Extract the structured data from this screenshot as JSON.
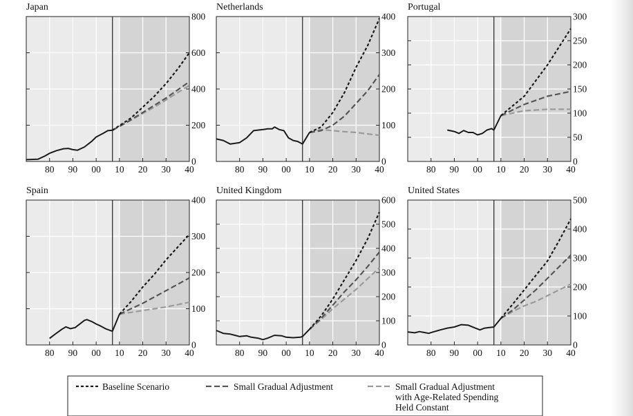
{
  "legend": {
    "items": [
      {
        "key": "baseline",
        "lines": [
          "Baseline Scenario"
        ],
        "color": "#1a1a1a",
        "dash": "4 3"
      },
      {
        "key": "gradual",
        "lines": [
          "Small Gradual Adjustment"
        ],
        "color": "#555555",
        "dash": "8 4"
      },
      {
        "key": "constant",
        "lines": [
          "Small Gradual Adjustment",
          "with Age-Related Spending",
          "Held Constant"
        ],
        "color": "#9a9a9a",
        "dash": "8 4"
      }
    ]
  },
  "chart_data": [
    {
      "type": "line",
      "title": "Japan",
      "x_ticks": [
        "80",
        "90",
        "00",
        "10",
        "20",
        "30",
        "40"
      ],
      "x_tick_values": [
        1980,
        1990,
        2000,
        2010,
        2020,
        2030,
        2040
      ],
      "xlim": [
        1970,
        2040
      ],
      "ylim": [
        0,
        800
      ],
      "y_ticks": [
        0,
        200,
        400,
        600,
        800
      ],
      "projection_start": 2007,
      "forecast_shade_start": 2010,
      "series": [
        {
          "key": "historical",
          "points": [
            [
              1970,
              10
            ],
            [
              1975,
              12
            ],
            [
              1978,
              30
            ],
            [
              1980,
              45
            ],
            [
              1983,
              60
            ],
            [
              1986,
              70
            ],
            [
              1988,
              72
            ],
            [
              1990,
              65
            ],
            [
              1992,
              62
            ],
            [
              1995,
              80
            ],
            [
              1998,
              110
            ],
            [
              2000,
              135
            ],
            [
              2003,
              155
            ],
            [
              2005,
              170
            ],
            [
              2007,
              172
            ]
          ]
        },
        {
          "key": "baseline",
          "points": [
            [
              2007,
              172
            ],
            [
              2015,
              240
            ],
            [
              2020,
              300
            ],
            [
              2025,
              360
            ],
            [
              2030,
              430
            ],
            [
              2035,
              510
            ],
            [
              2040,
              600
            ]
          ]
        },
        {
          "key": "gradual",
          "points": [
            [
              2007,
              172
            ],
            [
              2015,
              230
            ],
            [
              2020,
              270
            ],
            [
              2025,
              310
            ],
            [
              2030,
              350
            ],
            [
              2035,
              395
            ],
            [
              2040,
              440
            ]
          ]
        },
        {
          "key": "constant",
          "points": [
            [
              2007,
              172
            ],
            [
              2015,
              228
            ],
            [
              2020,
              265
            ],
            [
              2025,
              300
            ],
            [
              2030,
              340
            ],
            [
              2035,
              380
            ],
            [
              2040,
              420
            ]
          ]
        }
      ]
    },
    {
      "type": "line",
      "title": "Netherlands",
      "x_ticks": [
        "80",
        "90",
        "00",
        "10",
        "20",
        "30",
        "40"
      ],
      "x_tick_values": [
        1980,
        1990,
        2000,
        2010,
        2020,
        2030,
        2040
      ],
      "xlim": [
        1970,
        2040
      ],
      "ylim": [
        0,
        400
      ],
      "y_ticks": [
        0,
        100,
        200,
        300,
        400
      ],
      "projection_start": 2007,
      "forecast_shade_start": 2010,
      "series": [
        {
          "key": "historical",
          "points": [
            [
              1970,
              62
            ],
            [
              1973,
              58
            ],
            [
              1976,
              48
            ],
            [
              1980,
              52
            ],
            [
              1983,
              65
            ],
            [
              1986,
              85
            ],
            [
              1990,
              88
            ],
            [
              1992,
              90
            ],
            [
              1994,
              90
            ],
            [
              1995,
              95
            ],
            [
              1997,
              88
            ],
            [
              1999,
              85
            ],
            [
              2001,
              65
            ],
            [
              2003,
              58
            ],
            [
              2005,
              55
            ],
            [
              2007,
              48
            ],
            [
              2010,
              80
            ]
          ]
        },
        {
          "key": "baseline",
          "points": [
            [
              2010,
              80
            ],
            [
              2015,
              95
            ],
            [
              2020,
              135
            ],
            [
              2025,
              190
            ],
            [
              2030,
              260
            ],
            [
              2035,
              320
            ],
            [
              2040,
              395
            ]
          ]
        },
        {
          "key": "gradual",
          "points": [
            [
              2010,
              80
            ],
            [
              2015,
              85
            ],
            [
              2020,
              100
            ],
            [
              2025,
              125
            ],
            [
              2030,
              160
            ],
            [
              2035,
              195
            ],
            [
              2040,
              240
            ]
          ]
        },
        {
          "key": "constant",
          "points": [
            [
              2010,
              80
            ],
            [
              2015,
              88
            ],
            [
              2020,
              85
            ],
            [
              2025,
              82
            ],
            [
              2030,
              80
            ],
            [
              2035,
              76
            ],
            [
              2040,
              72
            ]
          ]
        }
      ]
    },
    {
      "type": "line",
      "title": "Portugal",
      "x_ticks": [
        "80",
        "90",
        "00",
        "10",
        "20",
        "30",
        "40"
      ],
      "x_tick_values": [
        1980,
        1990,
        2000,
        2010,
        2020,
        2030,
        2040
      ],
      "xlim": [
        1970,
        2040
      ],
      "ylim": [
        0,
        300
      ],
      "y_ticks": [
        0,
        50,
        100,
        150,
        200,
        250,
        300
      ],
      "projection_start": 2007,
      "forecast_shade_start": 2010,
      "series": [
        {
          "key": "historical",
          "points": [
            [
              1987,
              65
            ],
            [
              1990,
              62
            ],
            [
              1992,
              58
            ],
            [
              1994,
              64
            ],
            [
              1996,
              60
            ],
            [
              1998,
              60
            ],
            [
              2000,
              55
            ],
            [
              2002,
              58
            ],
            [
              2004,
              65
            ],
            [
              2006,
              68
            ],
            [
              2007,
              65
            ],
            [
              2010,
              95
            ]
          ]
        },
        {
          "key": "baseline",
          "points": [
            [
              2010,
              95
            ],
            [
              2020,
              135
            ],
            [
              2030,
              200
            ],
            [
              2040,
              275
            ]
          ]
        },
        {
          "key": "gradual",
          "points": [
            [
              2010,
              95
            ],
            [
              2020,
              118
            ],
            [
              2030,
              135
            ],
            [
              2040,
              145
            ]
          ]
        },
        {
          "key": "constant",
          "points": [
            [
              2010,
              95
            ],
            [
              2020,
              105
            ],
            [
              2030,
              108
            ],
            [
              2040,
              108
            ]
          ]
        }
      ]
    },
    {
      "type": "line",
      "title": "Spain",
      "x_ticks": [
        "80",
        "90",
        "00",
        "10",
        "20",
        "30",
        "40"
      ],
      "x_tick_values": [
        1980,
        1990,
        2000,
        2010,
        2020,
        2030,
        2040
      ],
      "xlim": [
        1970,
        2040
      ],
      "ylim": [
        0,
        400
      ],
      "y_ticks": [
        0,
        100,
        200,
        300,
        400
      ],
      "projection_start": 2007,
      "forecast_shade_start": 2010,
      "series": [
        {
          "key": "historical",
          "points": [
            [
              1980,
              18
            ],
            [
              1982,
              28
            ],
            [
              1985,
              42
            ],
            [
              1987,
              50
            ],
            [
              1989,
              45
            ],
            [
              1991,
              48
            ],
            [
              1993,
              58
            ],
            [
              1995,
              68
            ],
            [
              1996,
              70
            ],
            [
              1998,
              65
            ],
            [
              2000,
              58
            ],
            [
              2002,
              52
            ],
            [
              2004,
              45
            ],
            [
              2006,
              40
            ],
            [
              2007,
              38
            ],
            [
              2010,
              85
            ]
          ]
        },
        {
          "key": "baseline",
          "points": [
            [
              2010,
              85
            ],
            [
              2015,
              120
            ],
            [
              2020,
              160
            ],
            [
              2025,
              195
            ],
            [
              2030,
              235
            ],
            [
              2035,
              270
            ],
            [
              2040,
              305
            ]
          ]
        },
        {
          "key": "gradual",
          "points": [
            [
              2010,
              85
            ],
            [
              2020,
              115
            ],
            [
              2030,
              150
            ],
            [
              2040,
              185
            ]
          ]
        },
        {
          "key": "constant",
          "points": [
            [
              2010,
              85
            ],
            [
              2020,
              95
            ],
            [
              2030,
              105
            ],
            [
              2040,
              118
            ]
          ]
        }
      ]
    },
    {
      "type": "line",
      "title": "United Kingdom",
      "x_ticks": [
        "80",
        "90",
        "00",
        "10",
        "20",
        "30",
        "40"
      ],
      "x_tick_values": [
        1980,
        1990,
        2000,
        2010,
        2020,
        2030,
        2040
      ],
      "xlim": [
        1970,
        2040
      ],
      "ylim": [
        0,
        600
      ],
      "y_ticks": [
        0,
        100,
        200,
        300,
        400,
        500,
        600
      ],
      "projection_start": 2007,
      "forecast_shade_start": 2010,
      "series": [
        {
          "key": "historical",
          "points": [
            [
              1970,
              60
            ],
            [
              1973,
              48
            ],
            [
              1976,
              45
            ],
            [
              1978,
              40
            ],
            [
              1980,
              35
            ],
            [
              1983,
              38
            ],
            [
              1985,
              32
            ],
            [
              1988,
              28
            ],
            [
              1990,
              22
            ],
            [
              1992,
              28
            ],
            [
              1995,
              40
            ],
            [
              1998,
              38
            ],
            [
              2000,
              32
            ],
            [
              2003,
              30
            ],
            [
              2006,
              32
            ],
            [
              2007,
              35
            ],
            [
              2010,
              65
            ]
          ]
        },
        {
          "key": "baseline",
          "points": [
            [
              2010,
              65
            ],
            [
              2015,
              120
            ],
            [
              2020,
              190
            ],
            [
              2025,
              270
            ],
            [
              2030,
              350
            ],
            [
              2035,
              440
            ],
            [
              2040,
              550
            ]
          ]
        },
        {
          "key": "gradual",
          "points": [
            [
              2010,
              65
            ],
            [
              2015,
              110
            ],
            [
              2020,
              165
            ],
            [
              2025,
              220
            ],
            [
              2030,
              270
            ],
            [
              2035,
              325
            ],
            [
              2040,
              385
            ]
          ]
        },
        {
          "key": "constant",
          "points": [
            [
              2010,
              65
            ],
            [
              2015,
              105
            ],
            [
              2020,
              150
            ],
            [
              2025,
              190
            ],
            [
              2030,
              230
            ],
            [
              2035,
              275
            ],
            [
              2040,
              320
            ]
          ]
        }
      ]
    },
    {
      "type": "line",
      "title": "United States",
      "x_ticks": [
        "80",
        "90",
        "00",
        "10",
        "20",
        "30",
        "40"
      ],
      "x_tick_values": [
        1980,
        1990,
        2000,
        2010,
        2020,
        2030,
        2040
      ],
      "xlim": [
        1970,
        2040
      ],
      "ylim": [
        0,
        500
      ],
      "y_ticks": [
        0,
        100,
        200,
        300,
        400,
        500
      ],
      "projection_start": 2007,
      "forecast_shade_start": 2010,
      "series": [
        {
          "key": "historical",
          "points": [
            [
              1970,
              45
            ],
            [
              1973,
              42
            ],
            [
              1975,
              46
            ],
            [
              1977,
              43
            ],
            [
              1979,
              40
            ],
            [
              1981,
              45
            ],
            [
              1984,
              52
            ],
            [
              1987,
              58
            ],
            [
              1990,
              62
            ],
            [
              1993,
              70
            ],
            [
              1996,
              68
            ],
            [
              1999,
              58
            ],
            [
              2001,
              52
            ],
            [
              2003,
              58
            ],
            [
              2005,
              60
            ],
            [
              2007,
              62
            ],
            [
              2010,
              92
            ]
          ]
        },
        {
          "key": "baseline",
          "points": [
            [
              2010,
              92
            ],
            [
              2015,
              140
            ],
            [
              2020,
              190
            ],
            [
              2025,
              240
            ],
            [
              2030,
              290
            ],
            [
              2035,
              360
            ],
            [
              2040,
              435
            ]
          ]
        },
        {
          "key": "gradual",
          "points": [
            [
              2010,
              92
            ],
            [
              2015,
              120
            ],
            [
              2020,
              155
            ],
            [
              2025,
              190
            ],
            [
              2030,
              230
            ],
            [
              2035,
              270
            ],
            [
              2040,
              310
            ]
          ]
        },
        {
          "key": "constant",
          "points": [
            [
              2010,
              92
            ],
            [
              2015,
              115
            ],
            [
              2020,
              135
            ],
            [
              2025,
              150
            ],
            [
              2030,
              170
            ],
            [
              2035,
              190
            ],
            [
              2040,
              210
            ]
          ]
        }
      ]
    }
  ]
}
